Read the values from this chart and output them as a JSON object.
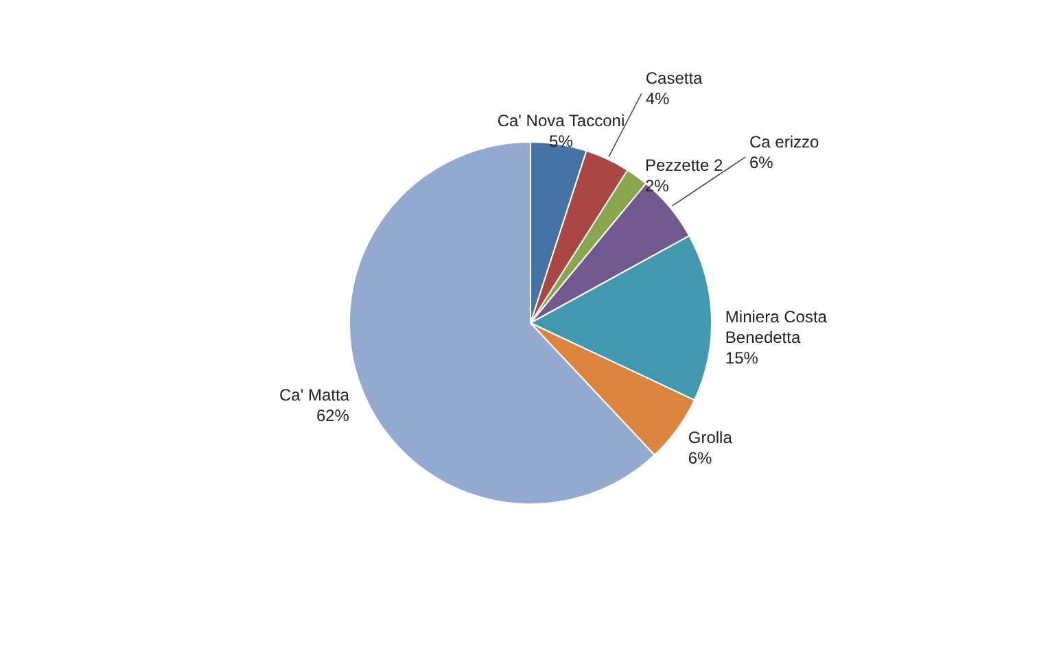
{
  "chart_data": {
    "type": "pie",
    "categories": [
      "Ca' Nova Tacconi",
      "Casetta",
      "Pezzette 2",
      "Ca erizzo",
      "Miniera Costa Benedetta",
      "Grolla",
      "Ca' Matta"
    ],
    "values": [
      5,
      4,
      2,
      6,
      15,
      6,
      62
    ],
    "value_labels": [
      "5%",
      "4%",
      "2%",
      "6%",
      "15%",
      "6%",
      "62%"
    ],
    "colors": [
      "#4572a7",
      "#aa4643",
      "#89a54e",
      "#71588f",
      "#4198af",
      "#db843d",
      "#93a9cf"
    ]
  }
}
